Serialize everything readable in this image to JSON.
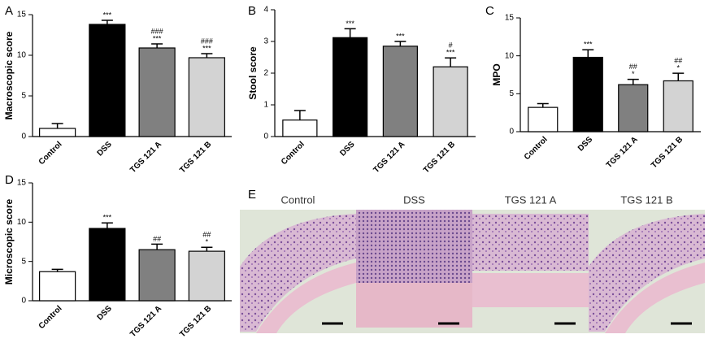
{
  "chart_data": [
    {
      "type": "bar",
      "panel": "A",
      "y_label": "Macroscopic score",
      "categories": [
        "Control",
        "DSS",
        "TGS 121 A",
        "TGS 121 B"
      ],
      "values": [
        1.0,
        13.8,
        10.9,
        9.7
      ],
      "errors": [
        0.6,
        0.5,
        0.5,
        0.5
      ],
      "colors": [
        "#ffffff",
        "#000000",
        "#808080",
        "#d3d3d3"
      ],
      "annotations": [
        null,
        [
          "***"
        ],
        [
          "###",
          "***"
        ],
        [
          "###",
          "***"
        ]
      ],
      "ylim": [
        0,
        15
      ],
      "yticks": [
        0,
        5,
        10,
        15
      ]
    },
    {
      "type": "bar",
      "panel": "B",
      "y_label": "Stool score",
      "categories": [
        "Control",
        "DSS",
        "TGS 121 A",
        "TGS 121 B"
      ],
      "values": [
        0.52,
        3.12,
        2.85,
        2.2
      ],
      "errors": [
        0.3,
        0.28,
        0.15,
        0.28
      ],
      "colors": [
        "#ffffff",
        "#000000",
        "#808080",
        "#d3d3d3"
      ],
      "annotations": [
        null,
        [
          "***"
        ],
        [
          "***"
        ],
        [
          "#",
          "***"
        ]
      ],
      "ylim": [
        0,
        4
      ],
      "yticks": [
        0,
        1,
        2,
        3,
        4
      ]
    },
    {
      "type": "bar",
      "panel": "C",
      "y_label": "MPO",
      "categories": [
        "Control",
        "DSS",
        "TGS 121 A",
        "TGS 121 B"
      ],
      "values": [
        3.2,
        9.8,
        6.2,
        6.7
      ],
      "errors": [
        0.5,
        1.0,
        0.7,
        1.0
      ],
      "colors": [
        "#ffffff",
        "#000000",
        "#808080",
        "#d3d3d3"
      ],
      "annotations": [
        null,
        [
          "***"
        ],
        [
          "##",
          "*"
        ],
        [
          "##",
          "*"
        ]
      ],
      "ylim": [
        0,
        15
      ],
      "yticks": [
        0,
        5,
        10,
        15
      ]
    },
    {
      "type": "bar",
      "panel": "D",
      "y_label": "Microscopic score",
      "categories": [
        "Control",
        "DSS",
        "TGS 121 A",
        "TGS 121 B"
      ],
      "values": [
        3.7,
        9.2,
        6.5,
        6.3
      ],
      "errors": [
        0.3,
        0.7,
        0.7,
        0.5
      ],
      "colors": [
        "#ffffff",
        "#000000",
        "#808080",
        "#d3d3d3"
      ],
      "annotations": [
        null,
        [
          "***"
        ],
        [
          "##"
        ],
        [
          "##",
          "*"
        ]
      ],
      "ylim": [
        0,
        15
      ],
      "yticks": [
        0,
        5,
        10,
        15
      ]
    }
  ],
  "panel_e": {
    "label": "E",
    "captions": [
      "Control",
      "DSS",
      "TGS 121 A",
      "TGS 121 B"
    ]
  }
}
